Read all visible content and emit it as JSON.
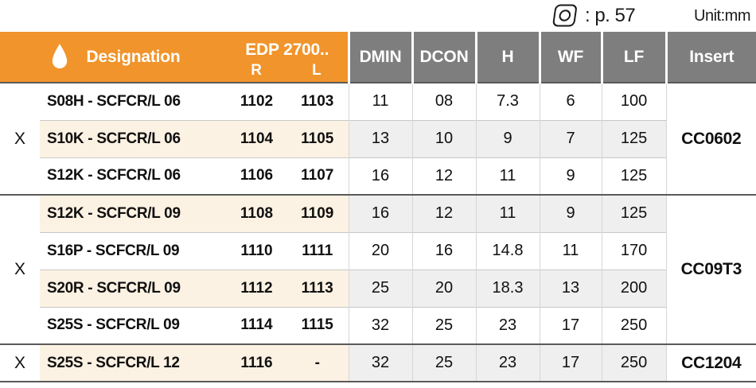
{
  "meta": {
    "page_ref_label": ": p. 57",
    "unit_label": "Unit:mm"
  },
  "header": {
    "coolant_icon": "coolant-droplet-icon",
    "insert_shape_icon": "cc-insert-shape-icon",
    "designation": "Designation",
    "edp_group": "EDP 2700..",
    "edp_r": "R",
    "edp_l": "L",
    "columns": [
      "DMIN",
      "DCON",
      "H",
      "WF",
      "LF",
      "Insert"
    ]
  },
  "colors": {
    "accent_orange": "#F0942B",
    "header_gray": "#7E7E7E",
    "row_cream": "#FCF2E3",
    "row_gray": "#EFEFEF",
    "group_divider": "#5A5A5A"
  },
  "groups": [
    {
      "coolant": "X",
      "insert": "CC0602",
      "rows": [
        {
          "designation": "S08H - SCFCR/L 06",
          "edp_r": "1102",
          "edp_l": "1103",
          "dmin": "11",
          "dcon": "08",
          "h": "7.3",
          "wf": "6",
          "lf": "100",
          "shaded": false
        },
        {
          "designation": "S10K - SCFCR/L 06",
          "edp_r": "1104",
          "edp_l": "1105",
          "dmin": "13",
          "dcon": "10",
          "h": "9",
          "wf": "7",
          "lf": "125",
          "shaded": true
        },
        {
          "designation": "S12K - SCFCR/L 06",
          "edp_r": "1106",
          "edp_l": "1107",
          "dmin": "16",
          "dcon": "12",
          "h": "11",
          "wf": "9",
          "lf": "125",
          "shaded": false
        }
      ]
    },
    {
      "coolant": "X",
      "insert": "CC09T3",
      "rows": [
        {
          "designation": "S12K - SCFCR/L 09",
          "edp_r": "1108",
          "edp_l": "1109",
          "dmin": "16",
          "dcon": "12",
          "h": "11",
          "wf": "9",
          "lf": "125",
          "shaded": true
        },
        {
          "designation": "S16P - SCFCR/L 09",
          "edp_r": "1110",
          "edp_l": "1111",
          "dmin": "20",
          "dcon": "16",
          "h": "14.8",
          "wf": "11",
          "lf": "170",
          "shaded": false
        },
        {
          "designation": "S20R - SCFCR/L 09",
          "edp_r": "1112",
          "edp_l": "1113",
          "dmin": "25",
          "dcon": "20",
          "h": "18.3",
          "wf": "13",
          "lf": "200",
          "shaded": true
        },
        {
          "designation": "S25S - SCFCR/L 09",
          "edp_r": "1114",
          "edp_l": "1115",
          "dmin": "32",
          "dcon": "25",
          "h": "23",
          "wf": "17",
          "lf": "250",
          "shaded": false
        }
      ]
    },
    {
      "coolant": "X",
      "insert": "CC1204",
      "rows": [
        {
          "designation": "S25S - SCFCR/L 12",
          "edp_r": "1116",
          "edp_l": "-",
          "dmin": "32",
          "dcon": "25",
          "h": "23",
          "wf": "17",
          "lf": "250",
          "shaded": true
        }
      ]
    }
  ]
}
